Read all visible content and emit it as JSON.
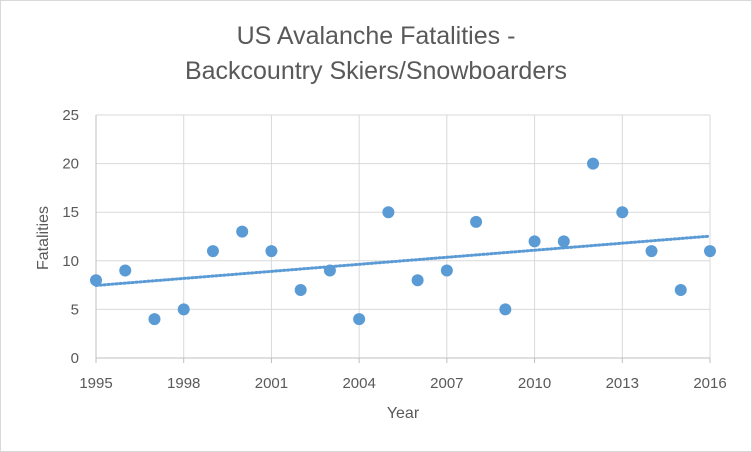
{
  "chart_data": {
    "type": "scatter",
    "title_lines": [
      "US Avalanche Fatalities -",
      "Backcountry Skiers/Snowboarders"
    ],
    "xlabel": "Year",
    "ylabel": "Fatalities",
    "xlim": [
      1995,
      2016
    ],
    "ylim": [
      0,
      25
    ],
    "x_ticks": [
      "1995",
      "1998",
      "2001",
      "2004",
      "2007",
      "2010",
      "2013",
      "2016"
    ],
    "y_ticks": [
      "0",
      "5",
      "10",
      "15",
      "20",
      "25"
    ],
    "grid": true,
    "legend": "none",
    "series": [
      {
        "x": [
          1995,
          1996,
          1997,
          1998,
          1999,
          2000,
          2001,
          2002,
          2003,
          2004,
          2005,
          2006,
          2007,
          2008,
          2009,
          2010,
          2011,
          2012,
          2013,
          2014,
          2015,
          2016
        ],
        "y": [
          8,
          9,
          4,
          5,
          11,
          13,
          11,
          7,
          9,
          4,
          15,
          8,
          9,
          14,
          5,
          12,
          12,
          20,
          15,
          11,
          7,
          11
        ],
        "color": "#5b9bd5"
      }
    ],
    "trendline": {
      "type": "linear",
      "style": "dotted",
      "color": "#5b9bd5"
    }
  }
}
